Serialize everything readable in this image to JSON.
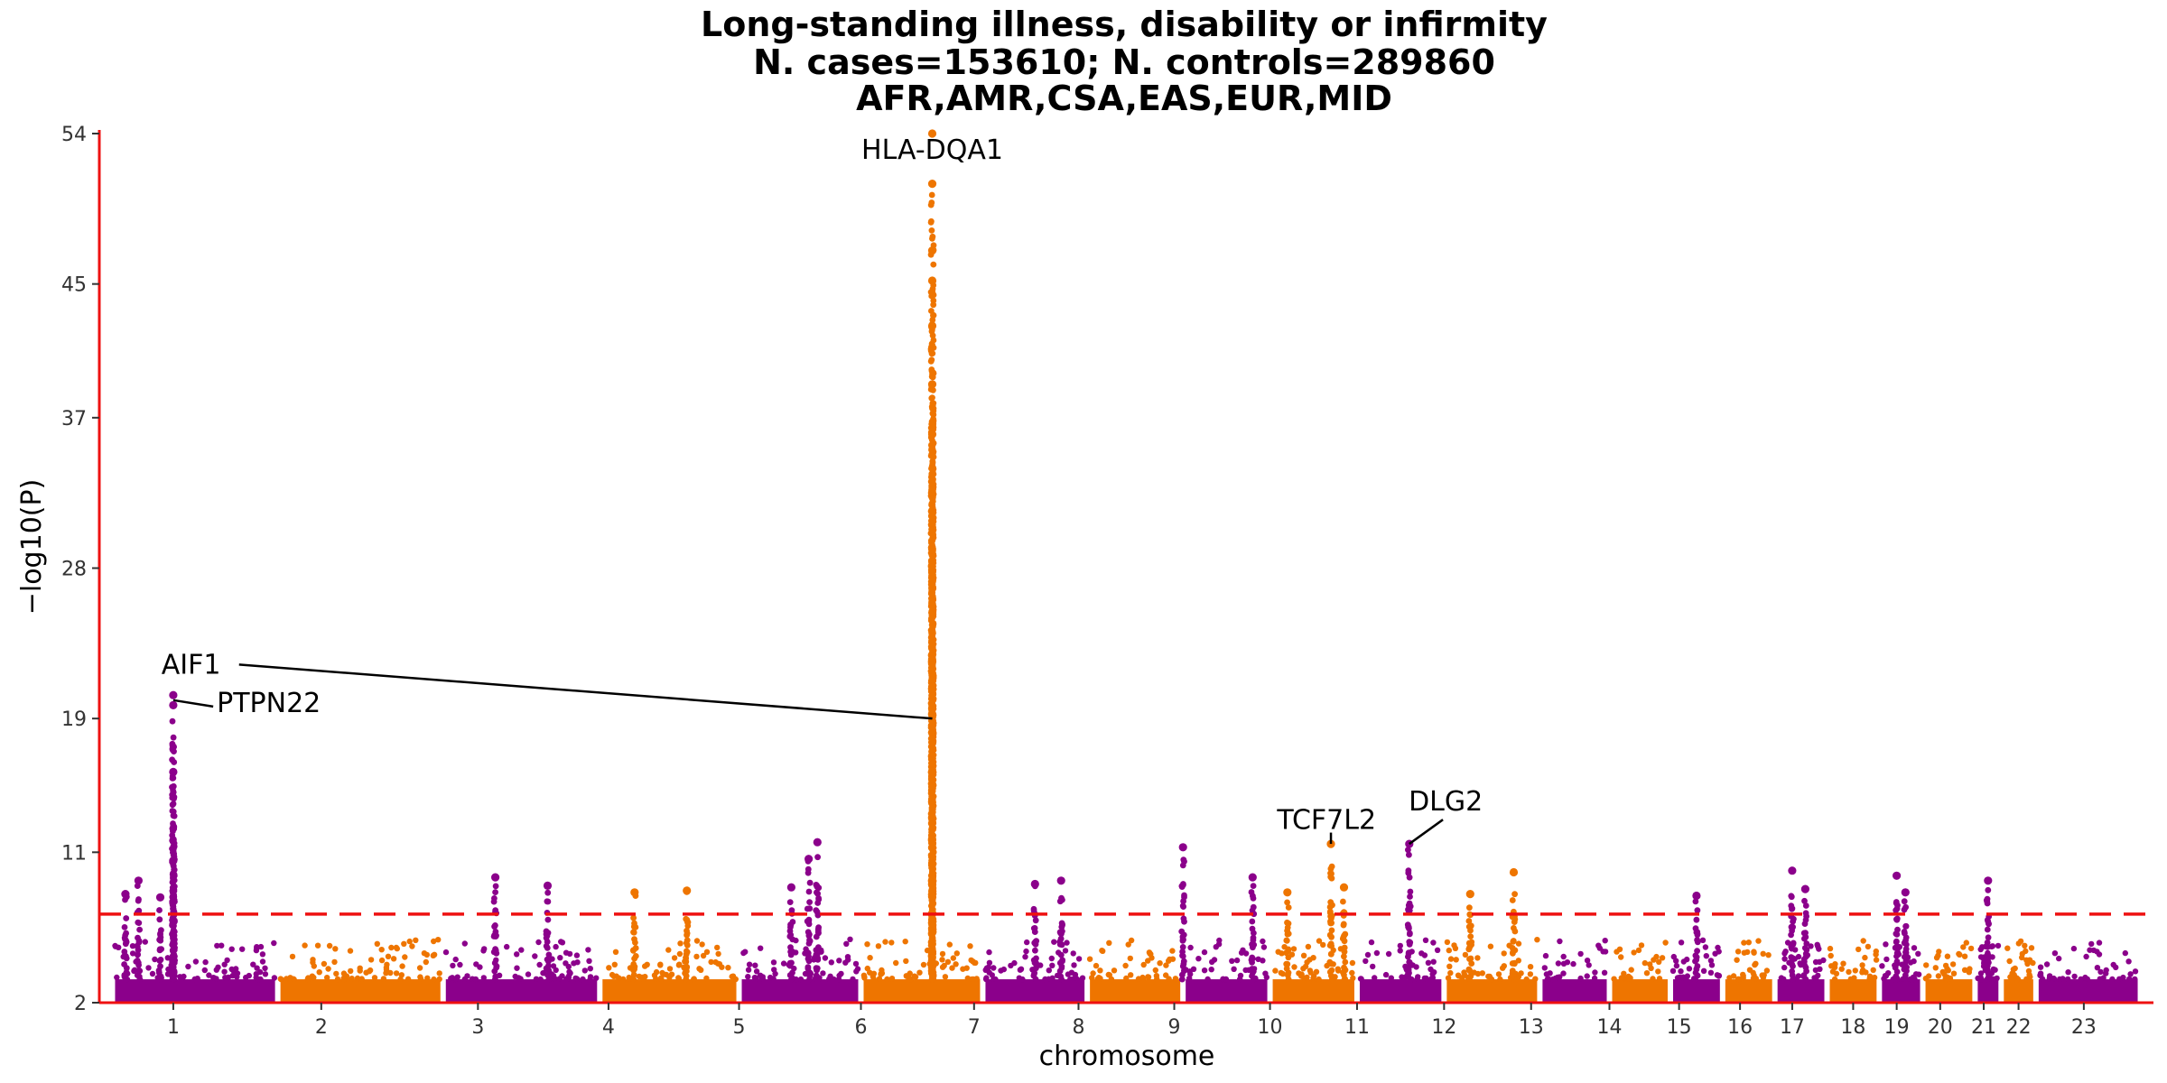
{
  "chart_data": {
    "type": "scatter",
    "subtype": "manhattan",
    "title_lines": [
      "Long-standing illness, disability or infirmity",
      "N. cases=153610; N. controls=289860",
      "AFR,AMR,CSA,EAS,EUR,MID"
    ],
    "xlabel": "chromosome",
    "ylabel": "−log10(P)",
    "ylim": [
      2,
      54
    ],
    "yticks": [
      2,
      11,
      19,
      28,
      37,
      45,
      54
    ],
    "significance_threshold": 7.3,
    "chromosomes": [
      "1",
      "2",
      "3",
      "4",
      "5",
      "6",
      "7",
      "8",
      "9",
      "10",
      "11",
      "12",
      "13",
      "14",
      "15",
      "16",
      "17",
      "18",
      "19",
      "20",
      "21",
      "22",
      "23"
    ],
    "chromosome_spans": [
      [
        0.3,
        2.2
      ],
      [
        2.2,
        4.1
      ],
      [
        4.1,
        5.9
      ],
      [
        5.9,
        7.5
      ],
      [
        7.5,
        8.9
      ],
      [
        8.9,
        10.3
      ],
      [
        10.3,
        11.5
      ],
      [
        11.5,
        12.6
      ],
      [
        12.6,
        13.6
      ],
      [
        13.6,
        14.6
      ],
      [
        14.6,
        15.6
      ],
      [
        15.6,
        16.7
      ],
      [
        16.7,
        17.5
      ],
      [
        17.5,
        18.2
      ],
      [
        18.2,
        18.8
      ],
      [
        18.8,
        19.4
      ],
      [
        19.4,
        20.0
      ],
      [
        20.0,
        20.6
      ],
      [
        20.6,
        21.1
      ],
      [
        21.1,
        21.7
      ],
      [
        21.7,
        22.0
      ],
      [
        22.0,
        22.4
      ],
      [
        22.4,
        23.6
      ]
    ],
    "tick_positions": [
      1,
      2.7,
      4.5,
      6.0,
      7.5,
      8.9,
      10.2,
      11.4,
      12.5,
      13.6,
      14.6,
      15.6,
      16.6,
      17.5,
      18.3,
      19.0,
      19.6,
      20.3,
      20.8,
      21.3,
      21.8,
      22.2,
      22.95
    ],
    "colors": [
      "#8b008b",
      "#ee7500"
    ],
    "threshold_color": "#ee1111",
    "axis_color": "#ee1111",
    "peaks": [
      {
        "chr": "1",
        "x": 0.45,
        "y": 8.5
      },
      {
        "chr": "1",
        "x": 0.6,
        "y": 9.3
      },
      {
        "chr": "1",
        "x": 0.85,
        "y": 8.3
      },
      {
        "chr": "1",
        "x": 1.0,
        "y": 15.8
      },
      {
        "chr": "1",
        "x": 1.0,
        "y": 10.5
      },
      {
        "chr": "1",
        "x": 1.0,
        "y": 19.8
      },
      {
        "chr": "1",
        "x": 1.0,
        "y": 20.4
      },
      {
        "chr": "3",
        "x": 4.7,
        "y": 9.5
      },
      {
        "chr": "3",
        "x": 5.3,
        "y": 9.0
      },
      {
        "chr": "4",
        "x": 6.3,
        "y": 8.6
      },
      {
        "chr": "4",
        "x": 6.9,
        "y": 8.7
      },
      {
        "chr": "5",
        "x": 8.1,
        "y": 8.9
      },
      {
        "chr": "5",
        "x": 8.3,
        "y": 10.6
      },
      {
        "chr": "5",
        "x": 8.4,
        "y": 11.6
      },
      {
        "chr": "6",
        "x": 9.72,
        "y": 54.0
      },
      {
        "chr": "6",
        "x": 9.72,
        "y": 51.0
      },
      {
        "chr": "6",
        "x": 9.72,
        "y": 47.0
      },
      {
        "chr": "6",
        "x": 9.72,
        "y": 45.2
      },
      {
        "chr": "6",
        "x": 9.72,
        "y": 42.5
      },
      {
        "chr": "6",
        "x": 9.72,
        "y": 39.0
      },
      {
        "chr": "6",
        "x": 9.72,
        "y": 36.0
      },
      {
        "chr": "7",
        "x": 10.9,
        "y": 9.1
      },
      {
        "chr": "7",
        "x": 11.2,
        "y": 9.3
      },
      {
        "chr": "8",
        "x": 12.6,
        "y": 11.3
      },
      {
        "chr": "9",
        "x": 13.4,
        "y": 9.5
      },
      {
        "chr": "9",
        "x": 13.8,
        "y": 8.6
      },
      {
        "chr": "10",
        "x": 14.3,
        "y": 11.5
      },
      {
        "chr": "10",
        "x": 14.45,
        "y": 8.9
      },
      {
        "chr": "11",
        "x": 15.2,
        "y": 11.5
      },
      {
        "chr": "12",
        "x": 15.9,
        "y": 8.5
      },
      {
        "chr": "12",
        "x": 16.4,
        "y": 9.8
      },
      {
        "chr": "15",
        "x": 18.5,
        "y": 8.4
      },
      {
        "chr": "16",
        "x": 19.6,
        "y": 9.9
      },
      {
        "chr": "16",
        "x": 19.75,
        "y": 8.8
      },
      {
        "chr": "18",
        "x": 20.8,
        "y": 9.6
      },
      {
        "chr": "18",
        "x": 20.9,
        "y": 8.6
      },
      {
        "chr": "20",
        "x": 21.85,
        "y": 9.3
      }
    ],
    "annotations": [
      {
        "text": "HLA-DQA1",
        "label_x": 9.72,
        "label_y": 52.6,
        "point_x": 9.72,
        "point_y": 54.0
      },
      {
        "text": "AIF1",
        "label_x": 1.05,
        "label_y": 21.8,
        "point_x": 9.72,
        "point_y": 19.0
      },
      {
        "text": "PTPN22",
        "label_x": 1.5,
        "label_y": 19.5,
        "point_x": 1.0,
        "point_y": 20.1
      },
      {
        "text": "TCF7L2",
        "label_x": 14.25,
        "label_y": 12.5,
        "point_x": 14.3,
        "point_y": 11.5
      },
      {
        "text": "DLG2",
        "label_x": 15.4,
        "label_y": 13.6,
        "point_x": 15.2,
        "point_y": 11.5
      }
    ]
  }
}
